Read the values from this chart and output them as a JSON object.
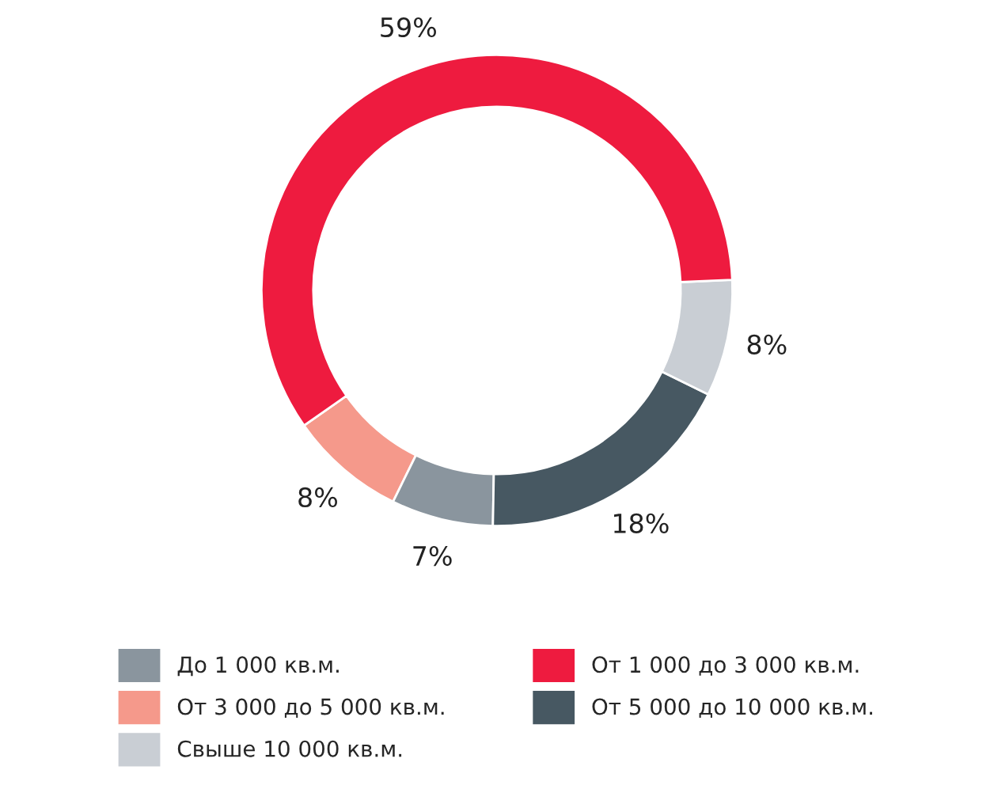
{
  "chart_data": {
    "type": "donut",
    "categories": [
      "До 1 000 кв.м.",
      "От 1 000 до 3 000 кв.м.",
      "От 3 000 до 5 000 кв.м.",
      "От 5 000 до 10 000 кв.м.",
      "Свыше 10 000 кв.м."
    ],
    "values": [
      7,
      59,
      8,
      18,
      8
    ],
    "value_labels": [
      "7%",
      "59%",
      "8%",
      "18%",
      "8%"
    ],
    "colors": [
      "#8a959e",
      "#ee1b3f",
      "#f5998b",
      "#475862",
      "#c9ced4"
    ],
    "legend": "bottom"
  }
}
